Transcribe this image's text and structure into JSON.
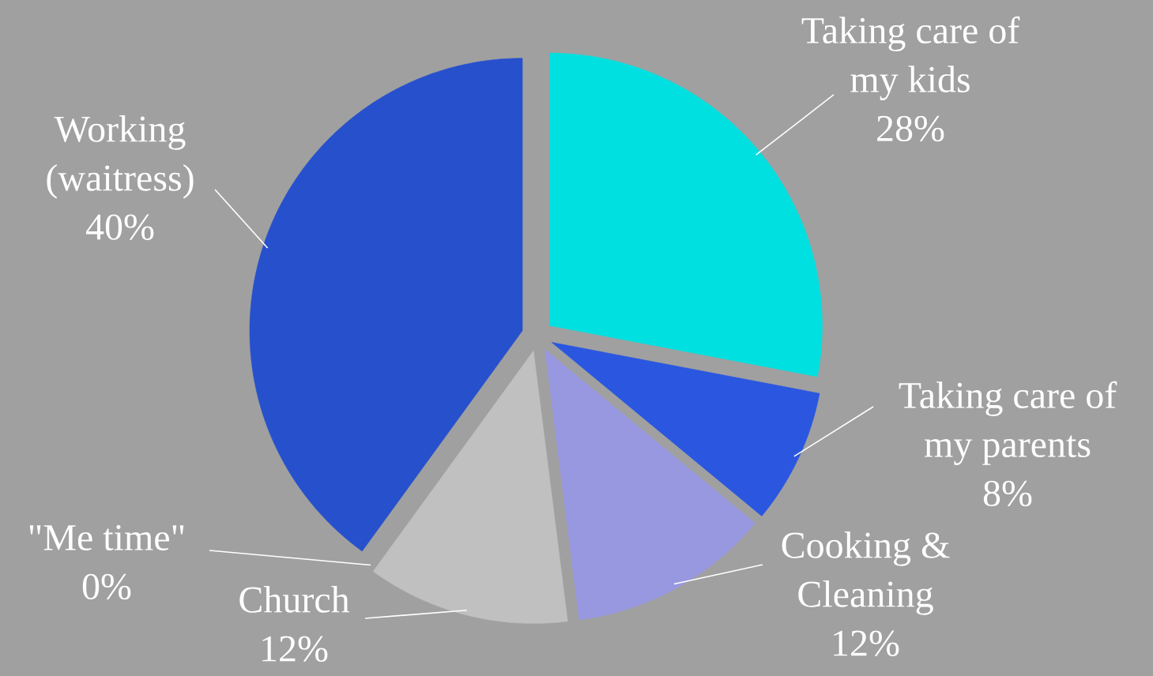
{
  "chart_data": {
    "type": "pie",
    "categories": [
      "Taking care of my kids",
      "Taking care of my parents",
      "Cooking & Cleaning",
      "Church",
      "\"Me time\"",
      "Working (waitress)"
    ],
    "values": [
      28,
      8,
      12,
      12,
      0,
      40
    ],
    "value_labels": [
      "28%",
      "8%",
      "12%",
      "12%",
      "0%",
      "40%"
    ],
    "colors": [
      "#00e0e0",
      "#2a56e0",
      "#9898e0",
      "#c0c0c0",
      "#80e0e0",
      "#2650cc"
    ]
  }
}
